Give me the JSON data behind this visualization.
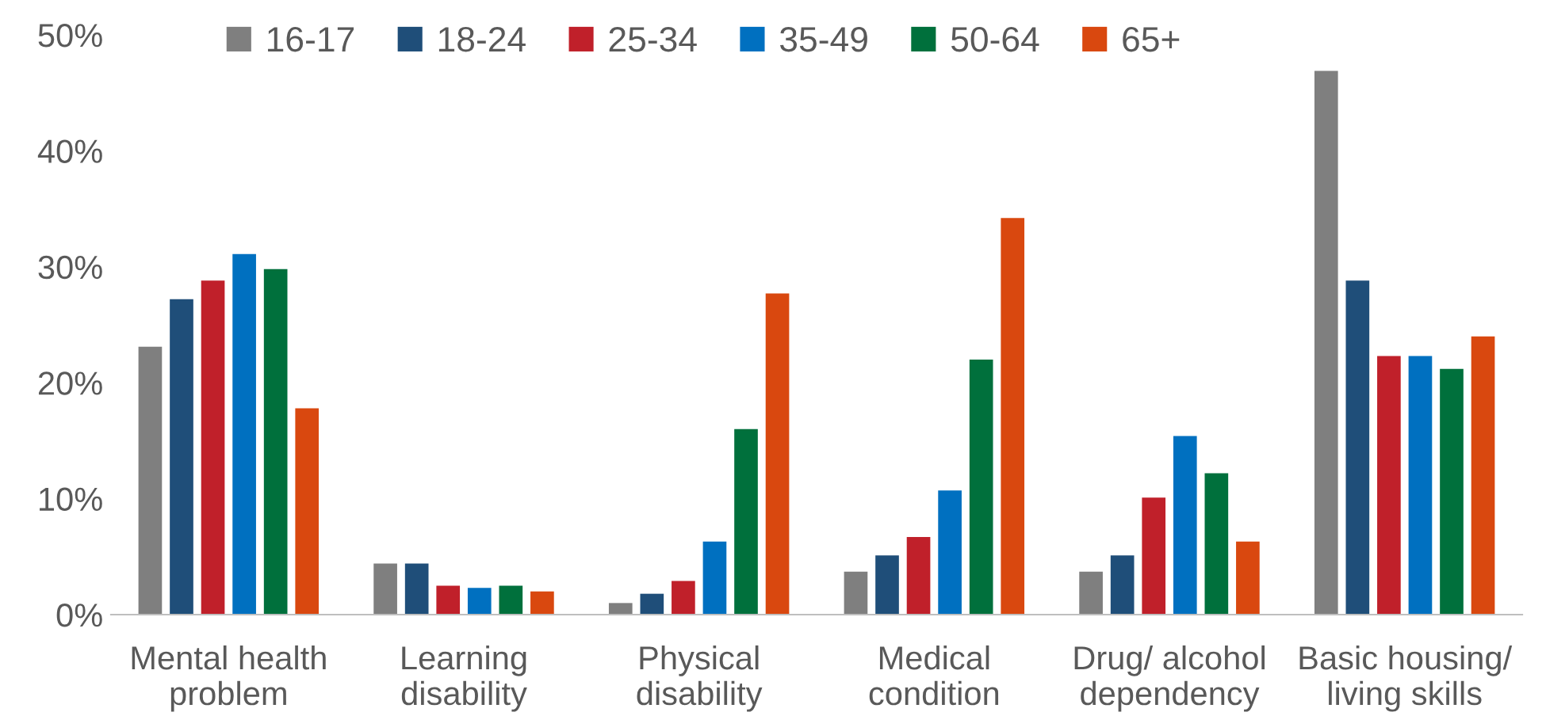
{
  "chart_data": {
    "type": "bar",
    "categories": [
      "Mental health\nproblem",
      "Learning\ndisability",
      "Physical\ndisability",
      "Medical\ncondition",
      "Drug/ alcohol\ndependency",
      "Basic housing/\nliving skills"
    ],
    "series": [
      {
        "name": "16-17",
        "color": "#7f7f7f",
        "values": [
          23.1,
          4.4,
          1.0,
          3.7,
          3.7,
          46.9
        ]
      },
      {
        "name": "18-24",
        "color": "#1f4e79",
        "values": [
          27.2,
          4.4,
          1.8,
          5.1,
          5.1,
          28.8
        ]
      },
      {
        "name": "25-34",
        "color": "#c0202a",
        "values": [
          28.8,
          2.5,
          2.9,
          6.7,
          10.1,
          22.3
        ]
      },
      {
        "name": "35-49",
        "color": "#0070c0",
        "values": [
          31.1,
          2.3,
          6.3,
          10.7,
          15.4,
          22.3
        ]
      },
      {
        "name": "50-64",
        "color": "#00703c",
        "values": [
          29.8,
          2.5,
          16.0,
          22.0,
          12.2,
          21.2
        ]
      },
      {
        "name": "65+",
        "color": "#d9480f",
        "values": [
          17.8,
          2.0,
          27.7,
          34.2,
          6.3,
          24.0
        ]
      }
    ],
    "ylim": [
      0,
      50
    ],
    "yticks": [
      {
        "value": 0,
        "label": "0%"
      },
      {
        "value": 10,
        "label": "10%"
      },
      {
        "value": 20,
        "label": "20%"
      },
      {
        "value": 30,
        "label": "30%"
      },
      {
        "value": 40,
        "label": "40%"
      },
      {
        "value": 50,
        "label": "50%"
      }
    ],
    "grid": false,
    "legend": "top"
  }
}
